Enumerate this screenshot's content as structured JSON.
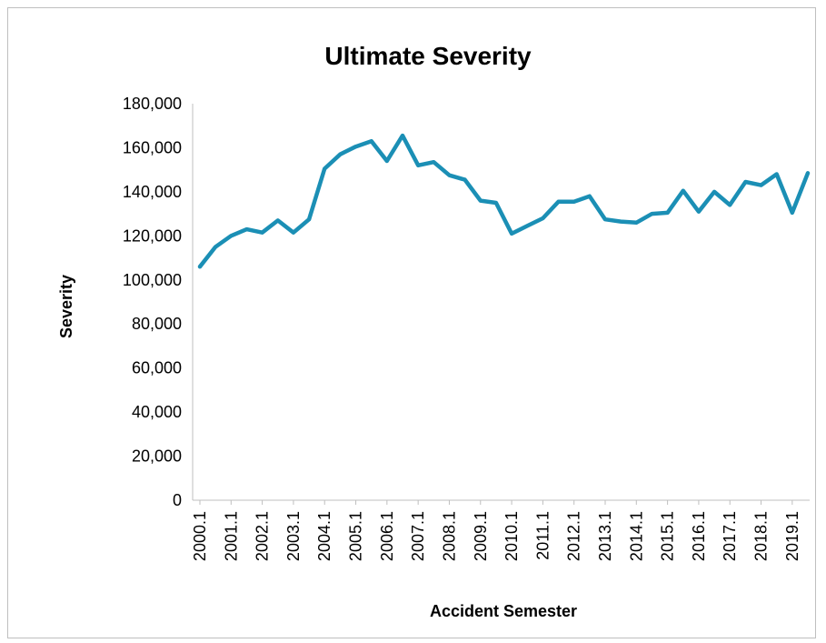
{
  "chart_data": {
    "type": "line",
    "title": "Ultimate Severity",
    "xlabel": "Accident Semester",
    "ylabel": "Severity",
    "ylim": [
      0,
      180000
    ],
    "y_ticks": [
      "0",
      "20,000",
      "40,000",
      "60,000",
      "80,000",
      "100,000",
      "120,000",
      "140,000",
      "160,000",
      "180,000"
    ],
    "x_tick_labels": [
      "2000.1",
      "2001.1",
      "2002.1",
      "2003.1",
      "2004.1",
      "2005.1",
      "2006.1",
      "2007.1",
      "2008.1",
      "2009.1",
      "2010.1",
      "2011.1",
      "2012.1",
      "2013.1",
      "2014.1",
      "2015.1",
      "2016.1",
      "2017.1",
      "2018.1",
      "2019.1"
    ],
    "x": [
      "2000.1",
      "2000.2",
      "2001.1",
      "2001.2",
      "2002.1",
      "2002.2",
      "2003.1",
      "2003.2",
      "2004.1",
      "2004.2",
      "2005.1",
      "2005.2",
      "2006.1",
      "2006.2",
      "2007.1",
      "2007.2",
      "2008.1",
      "2008.2",
      "2009.1",
      "2009.2",
      "2010.1",
      "2010.2",
      "2011.1",
      "2011.2",
      "2012.1",
      "2012.2",
      "2013.1",
      "2013.2",
      "2014.1",
      "2014.2",
      "2015.1",
      "2015.2",
      "2016.1",
      "2016.2",
      "2017.1",
      "2017.2",
      "2018.1",
      "2018.2",
      "2019.1",
      "2019.2"
    ],
    "series": [
      {
        "values": [
          106000,
          115000,
          120000,
          123000,
          121500,
          127000,
          121500,
          127500,
          150500,
          157000,
          160500,
          163000,
          154000,
          165500,
          152000,
          153500,
          147500,
          145500,
          136000,
          135000,
          121000,
          124500,
          128000,
          135500,
          135500,
          138000,
          127500,
          126500,
          126000,
          130000,
          130500,
          140500,
          131000,
          140000,
          134000,
          144500,
          143000,
          148000,
          130500,
          148500
        ],
        "color": "#1B8FB5"
      }
    ],
    "grid": false,
    "legend": "none"
  }
}
